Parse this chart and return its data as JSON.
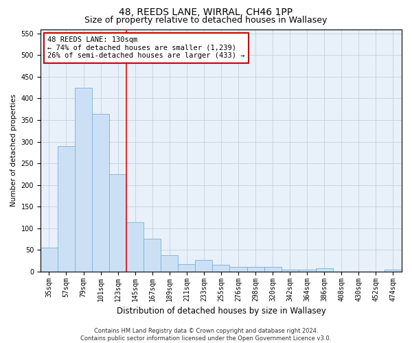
{
  "title": "48, REEDS LANE, WIRRAL, CH46 1PP",
  "subtitle": "Size of property relative to detached houses in Wallasey",
  "xlabel": "Distribution of detached houses by size in Wallasey",
  "ylabel": "Number of detached properties",
  "categories": [
    "35sqm",
    "57sqm",
    "79sqm",
    "101sqm",
    "123sqm",
    "145sqm",
    "167sqm",
    "189sqm",
    "211sqm",
    "233sqm",
    "255sqm",
    "276sqm",
    "298sqm",
    "320sqm",
    "342sqm",
    "364sqm",
    "386sqm",
    "408sqm",
    "430sqm",
    "452sqm",
    "474sqm"
  ],
  "values": [
    55,
    290,
    425,
    365,
    225,
    113,
    75,
    38,
    17,
    27,
    15,
    10,
    10,
    10,
    5,
    4,
    7,
    0,
    0,
    0,
    4
  ],
  "bar_color": "#cce0f5",
  "bar_edge_color": "#7ab0d8",
  "background_color": "#ffffff",
  "ax_background_color": "#e8f0fa",
  "grid_color": "#c0c8d8",
  "red_line_x": 4.5,
  "annotation_text": "48 REEDS LANE: 130sqm\n← 74% of detached houses are smaller (1,239)\n26% of semi-detached houses are larger (433) →",
  "annotation_box_color": "#ffffff",
  "annotation_box_edge": "#cc0000",
  "ylim": [
    0,
    560
  ],
  "yticks": [
    0,
    50,
    100,
    150,
    200,
    250,
    300,
    350,
    400,
    450,
    500,
    550
  ],
  "footer_text": "Contains HM Land Registry data © Crown copyright and database right 2024.\nContains public sector information licensed under the Open Government Licence v3.0.",
  "title_fontsize": 10,
  "subtitle_fontsize": 9,
  "xlabel_fontsize": 8.5,
  "ylabel_fontsize": 7.5,
  "tick_fontsize": 7,
  "annotation_fontsize": 7.5,
  "footer_fontsize": 6
}
